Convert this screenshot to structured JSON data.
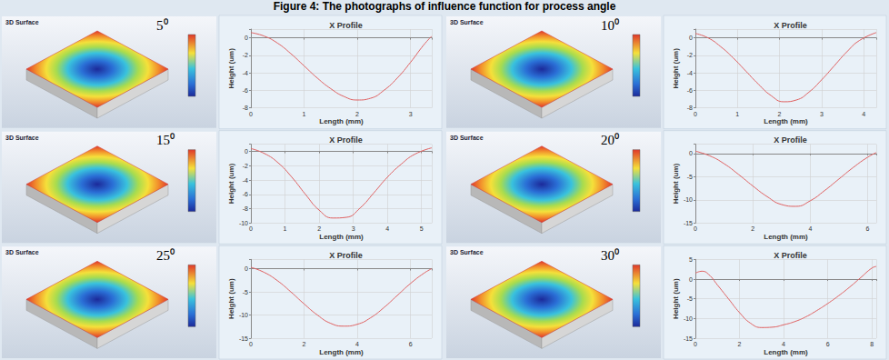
{
  "title": "Figure 4: The photographs of influence function for process angle",
  "panel_label": "3D Surface",
  "chart_data": [
    {
      "type": "line",
      "annotation": "5⁰",
      "title": "X Profile",
      "x_label": "Length (mm)",
      "y_label": "Height (um)",
      "color": "#e06060",
      "grid": true,
      "x": [
        0,
        0.25,
        0.5,
        0.75,
        1.0,
        1.25,
        1.5,
        1.75,
        2.0,
        2.25,
        2.5,
        2.75,
        3.0,
        3.25,
        3.4
      ],
      "values": [
        0.6,
        0.2,
        -0.6,
        -1.8,
        -3.2,
        -4.6,
        -5.8,
        -6.7,
        -7.1,
        -6.9,
        -6.0,
        -4.6,
        -2.8,
        -0.8,
        0.2
      ],
      "xlim": [
        0,
        3.4
      ],
      "xticks": [
        0,
        1,
        2,
        3
      ],
      "ylim": [
        -8,
        1
      ],
      "yticks": [
        -8,
        -6,
        -4,
        -2,
        0
      ]
    },
    {
      "type": "line",
      "annotation": "10⁰",
      "title": "X Profile",
      "x_label": "Length (mm)",
      "y_label": "Height (um)",
      "color": "#e06060",
      "grid": true,
      "x": [
        0,
        0.3,
        0.6,
        0.9,
        1.2,
        1.5,
        1.8,
        2.1,
        2.4,
        2.7,
        3.0,
        3.3,
        3.6,
        3.9,
        4.3
      ],
      "values": [
        0.5,
        0,
        -1.0,
        -2.3,
        -3.8,
        -5.3,
        -6.6,
        -7.3,
        -7.1,
        -6.2,
        -4.8,
        -3.2,
        -1.6,
        -0.3,
        0.6
      ],
      "xlim": [
        0,
        4.3
      ],
      "xticks": [
        0,
        1,
        2,
        3,
        4
      ],
      "ylim": [
        -8,
        1
      ],
      "yticks": [
        -8,
        -6,
        -4,
        -2,
        0
      ]
    },
    {
      "type": "line",
      "annotation": "15⁰",
      "title": "X Profile",
      "x_label": "Length (mm)",
      "y_label": "Height (um)",
      "color": "#e06060",
      "grid": true,
      "x": [
        0,
        0.4,
        0.8,
        1.2,
        1.6,
        2.0,
        2.4,
        2.8,
        3.2,
        3.6,
        4.0,
        4.4,
        4.8,
        5.3
      ],
      "values": [
        0.4,
        -0.3,
        -1.6,
        -3.6,
        -6.0,
        -8.2,
        -9.3,
        -9.2,
        -7.9,
        -5.8,
        -3.6,
        -1.8,
        -0.4,
        0.5
      ],
      "xlim": [
        0,
        5.3
      ],
      "xticks": [
        0,
        1,
        2,
        3,
        4,
        5
      ],
      "ylim": [
        -10,
        1
      ],
      "yticks": [
        -10,
        -8,
        -6,
        -4,
        -2,
        0
      ]
    },
    {
      "type": "line",
      "annotation": "20⁰",
      "title": "X Profile",
      "x_label": "Length (mm)",
      "y_label": "Height (um)",
      "color": "#e06060",
      "grid": true,
      "x": [
        0,
        0.5,
        1,
        1.5,
        2,
        2.5,
        3,
        3.5,
        4,
        4.5,
        5,
        5.5,
        6,
        6.3
      ],
      "values": [
        0.5,
        -0.5,
        -2.2,
        -4.5,
        -7.0,
        -9.3,
        -11.0,
        -11.4,
        -10.2,
        -8.0,
        -5.5,
        -3.0,
        -0.8,
        0.2
      ],
      "xlim": [
        0,
        6.3
      ],
      "xticks": [
        0,
        2,
        4,
        6
      ],
      "ylim": [
        -15,
        2
      ],
      "yticks": [
        -15,
        -10,
        -5,
        0
      ]
    },
    {
      "type": "line",
      "annotation": "25⁰",
      "title": "X Profile",
      "x_label": "Length (mm)",
      "y_label": "Height (um)",
      "color": "#e06060",
      "grid": true,
      "x": [
        0,
        0.5,
        1,
        1.5,
        2,
        2.5,
        3,
        3.5,
        4,
        4.5,
        5,
        5.5,
        6,
        6.5,
        6.8
      ],
      "values": [
        0.3,
        -0.8,
        -2.6,
        -5.0,
        -7.6,
        -10.0,
        -11.8,
        -12.4,
        -12.0,
        -10.6,
        -8.4,
        -5.8,
        -3.2,
        -1.0,
        0
      ],
      "xlim": [
        0,
        6.8
      ],
      "xticks": [
        0,
        2,
        4,
        6
      ],
      "ylim": [
        -15,
        2
      ],
      "yticks": [
        -15,
        -10,
        -5,
        0
      ]
    },
    {
      "type": "line",
      "annotation": "30⁰",
      "title": "X Profile",
      "x_label": "Length (mm)",
      "y_label": "Height (um)",
      "color": "#e06060",
      "grid": true,
      "x": [
        0,
        0.3,
        0.6,
        1,
        1.5,
        2,
        2.5,
        3,
        3.5,
        4,
        4.5,
        5,
        5.5,
        6,
        6.5,
        7,
        7.5,
        8,
        8.2
      ],
      "values": [
        1.5,
        2.0,
        1.2,
        -1.5,
        -5.0,
        -8.5,
        -11.2,
        -12.3,
        -12.2,
        -11.6,
        -10.8,
        -9.6,
        -8.0,
        -6.2,
        -4.2,
        -2.0,
        0.4,
        2.8,
        3.2
      ],
      "xlim": [
        0,
        8.2
      ],
      "xticks": [
        0,
        2,
        4,
        6,
        8
      ],
      "ylim": [
        -15,
        5
      ],
      "yticks": [
        -15,
        -10,
        -5,
        0,
        5
      ]
    }
  ]
}
